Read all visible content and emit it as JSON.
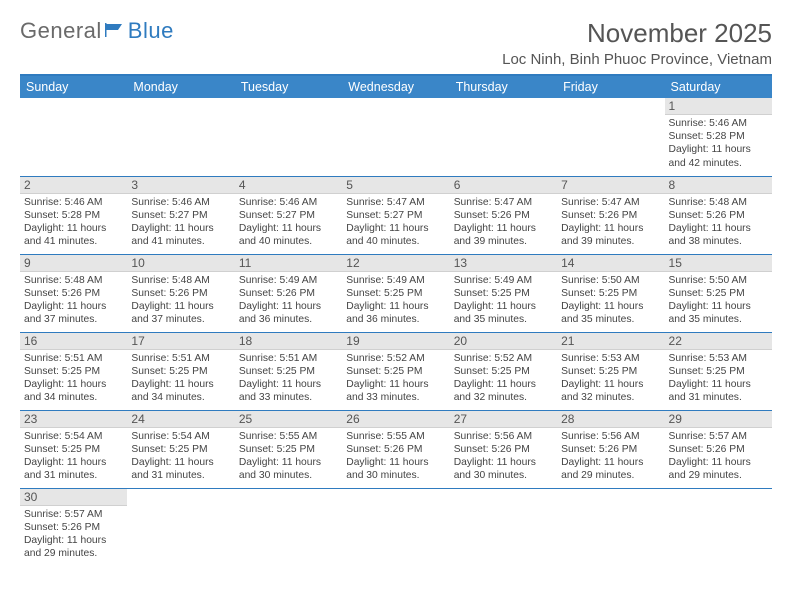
{
  "logo": {
    "part1": "General",
    "part2": "Blue"
  },
  "title": {
    "month": "November 2025",
    "location": "Loc Ninh, Binh Phuoc Province, Vietnam"
  },
  "colors": {
    "accent": "#2f7bbf",
    "header_bg": "#3a86c8",
    "daynum_bg": "#e6e6e6",
    "text": "#444"
  },
  "weekdays": [
    "Sunday",
    "Monday",
    "Tuesday",
    "Wednesday",
    "Thursday",
    "Friday",
    "Saturday"
  ],
  "calendar": {
    "rows": [
      [
        null,
        null,
        null,
        null,
        null,
        null,
        {
          "n": "1",
          "sunrise": "Sunrise: 5:46 AM",
          "sunset": "Sunset: 5:28 PM",
          "daylight": "Daylight: 11 hours and 42 minutes."
        }
      ],
      [
        {
          "n": "2",
          "sunrise": "Sunrise: 5:46 AM",
          "sunset": "Sunset: 5:28 PM",
          "daylight": "Daylight: 11 hours and 41 minutes."
        },
        {
          "n": "3",
          "sunrise": "Sunrise: 5:46 AM",
          "sunset": "Sunset: 5:27 PM",
          "daylight": "Daylight: 11 hours and 41 minutes."
        },
        {
          "n": "4",
          "sunrise": "Sunrise: 5:46 AM",
          "sunset": "Sunset: 5:27 PM",
          "daylight": "Daylight: 11 hours and 40 minutes."
        },
        {
          "n": "5",
          "sunrise": "Sunrise: 5:47 AM",
          "sunset": "Sunset: 5:27 PM",
          "daylight": "Daylight: 11 hours and 40 minutes."
        },
        {
          "n": "6",
          "sunrise": "Sunrise: 5:47 AM",
          "sunset": "Sunset: 5:26 PM",
          "daylight": "Daylight: 11 hours and 39 minutes."
        },
        {
          "n": "7",
          "sunrise": "Sunrise: 5:47 AM",
          "sunset": "Sunset: 5:26 PM",
          "daylight": "Daylight: 11 hours and 39 minutes."
        },
        {
          "n": "8",
          "sunrise": "Sunrise: 5:48 AM",
          "sunset": "Sunset: 5:26 PM",
          "daylight": "Daylight: 11 hours and 38 minutes."
        }
      ],
      [
        {
          "n": "9",
          "sunrise": "Sunrise: 5:48 AM",
          "sunset": "Sunset: 5:26 PM",
          "daylight": "Daylight: 11 hours and 37 minutes."
        },
        {
          "n": "10",
          "sunrise": "Sunrise: 5:48 AM",
          "sunset": "Sunset: 5:26 PM",
          "daylight": "Daylight: 11 hours and 37 minutes."
        },
        {
          "n": "11",
          "sunrise": "Sunrise: 5:49 AM",
          "sunset": "Sunset: 5:26 PM",
          "daylight": "Daylight: 11 hours and 36 minutes."
        },
        {
          "n": "12",
          "sunrise": "Sunrise: 5:49 AM",
          "sunset": "Sunset: 5:25 PM",
          "daylight": "Daylight: 11 hours and 36 minutes."
        },
        {
          "n": "13",
          "sunrise": "Sunrise: 5:49 AM",
          "sunset": "Sunset: 5:25 PM",
          "daylight": "Daylight: 11 hours and 35 minutes."
        },
        {
          "n": "14",
          "sunrise": "Sunrise: 5:50 AM",
          "sunset": "Sunset: 5:25 PM",
          "daylight": "Daylight: 11 hours and 35 minutes."
        },
        {
          "n": "15",
          "sunrise": "Sunrise: 5:50 AM",
          "sunset": "Sunset: 5:25 PM",
          "daylight": "Daylight: 11 hours and 35 minutes."
        }
      ],
      [
        {
          "n": "16",
          "sunrise": "Sunrise: 5:51 AM",
          "sunset": "Sunset: 5:25 PM",
          "daylight": "Daylight: 11 hours and 34 minutes."
        },
        {
          "n": "17",
          "sunrise": "Sunrise: 5:51 AM",
          "sunset": "Sunset: 5:25 PM",
          "daylight": "Daylight: 11 hours and 34 minutes."
        },
        {
          "n": "18",
          "sunrise": "Sunrise: 5:51 AM",
          "sunset": "Sunset: 5:25 PM",
          "daylight": "Daylight: 11 hours and 33 minutes."
        },
        {
          "n": "19",
          "sunrise": "Sunrise: 5:52 AM",
          "sunset": "Sunset: 5:25 PM",
          "daylight": "Daylight: 11 hours and 33 minutes."
        },
        {
          "n": "20",
          "sunrise": "Sunrise: 5:52 AM",
          "sunset": "Sunset: 5:25 PM",
          "daylight": "Daylight: 11 hours and 32 minutes."
        },
        {
          "n": "21",
          "sunrise": "Sunrise: 5:53 AM",
          "sunset": "Sunset: 5:25 PM",
          "daylight": "Daylight: 11 hours and 32 minutes."
        },
        {
          "n": "22",
          "sunrise": "Sunrise: 5:53 AM",
          "sunset": "Sunset: 5:25 PM",
          "daylight": "Daylight: 11 hours and 31 minutes."
        }
      ],
      [
        {
          "n": "23",
          "sunrise": "Sunrise: 5:54 AM",
          "sunset": "Sunset: 5:25 PM",
          "daylight": "Daylight: 11 hours and 31 minutes."
        },
        {
          "n": "24",
          "sunrise": "Sunrise: 5:54 AM",
          "sunset": "Sunset: 5:25 PM",
          "daylight": "Daylight: 11 hours and 31 minutes."
        },
        {
          "n": "25",
          "sunrise": "Sunrise: 5:55 AM",
          "sunset": "Sunset: 5:25 PM",
          "daylight": "Daylight: 11 hours and 30 minutes."
        },
        {
          "n": "26",
          "sunrise": "Sunrise: 5:55 AM",
          "sunset": "Sunset: 5:26 PM",
          "daylight": "Daylight: 11 hours and 30 minutes."
        },
        {
          "n": "27",
          "sunrise": "Sunrise: 5:56 AM",
          "sunset": "Sunset: 5:26 PM",
          "daylight": "Daylight: 11 hours and 30 minutes."
        },
        {
          "n": "28",
          "sunrise": "Sunrise: 5:56 AM",
          "sunset": "Sunset: 5:26 PM",
          "daylight": "Daylight: 11 hours and 29 minutes."
        },
        {
          "n": "29",
          "sunrise": "Sunrise: 5:57 AM",
          "sunset": "Sunset: 5:26 PM",
          "daylight": "Daylight: 11 hours and 29 minutes."
        }
      ],
      [
        {
          "n": "30",
          "sunrise": "Sunrise: 5:57 AM",
          "sunset": "Sunset: 5:26 PM",
          "daylight": "Daylight: 11 hours and 29 minutes."
        },
        null,
        null,
        null,
        null,
        null,
        null
      ]
    ]
  }
}
